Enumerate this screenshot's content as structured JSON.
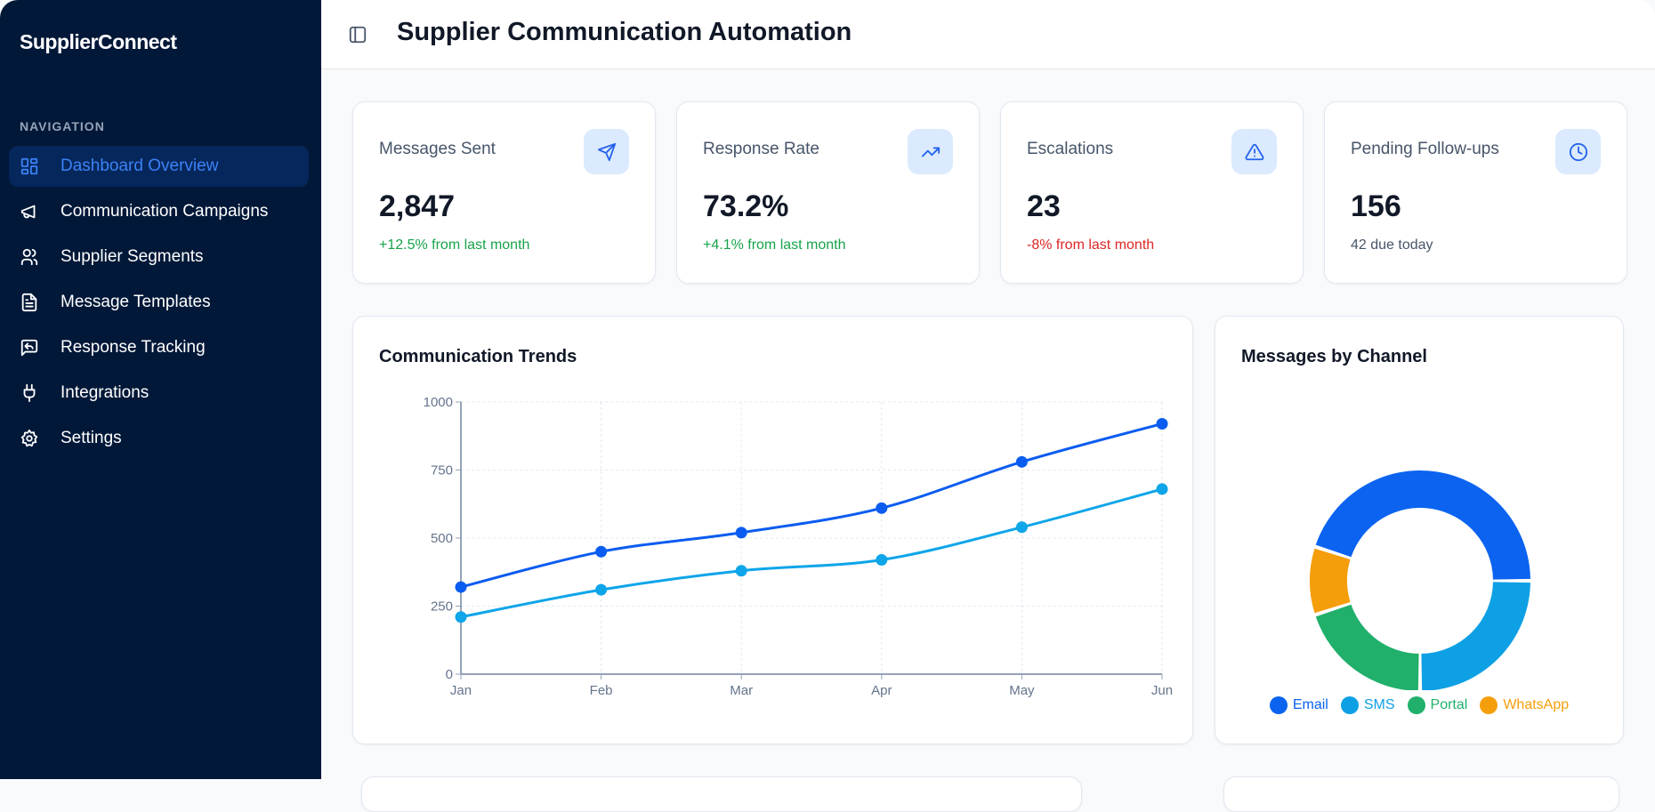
{
  "sidebar": {
    "brand": "SupplierConnect",
    "section": "NAVIGATION",
    "items": [
      {
        "label": "Dashboard Overview",
        "icon": "dashboard-icon",
        "active": true
      },
      {
        "label": "Communication Campaigns",
        "icon": "megaphone-icon"
      },
      {
        "label": "Supplier Segments",
        "icon": "users-icon"
      },
      {
        "label": "Message Templates",
        "icon": "file-text-icon"
      },
      {
        "label": "Response Tracking",
        "icon": "message-reply-icon"
      },
      {
        "label": "Integrations",
        "icon": "plug-icon"
      },
      {
        "label": "Settings",
        "icon": "gear-icon"
      }
    ]
  },
  "header": {
    "title": "Supplier Communication Automation",
    "toggle_icon": "sidebar-toggle-icon"
  },
  "stats": [
    {
      "label": "Messages Sent",
      "value": "2,847",
      "sub": "+12.5% from last month",
      "sub_color": "#16a34a",
      "icon": "send-icon"
    },
    {
      "label": "Response Rate",
      "value": "73.2%",
      "sub": "+4.1% from last month",
      "sub_color": "#16a34a",
      "icon": "trending-up-icon"
    },
    {
      "label": "Escalations",
      "value": "23",
      "sub": "-8% from last month",
      "sub_color": "#dc2626",
      "icon": "alert-triangle-icon"
    },
    {
      "label": "Pending Follow-ups",
      "value": "156",
      "sub": "42 due today",
      "sub_color": "#475569",
      "icon": "clock-icon"
    }
  ],
  "chart_data": [
    {
      "type": "line",
      "title": "Communication Trends",
      "categories": [
        "Jan",
        "Feb",
        "Mar",
        "Apr",
        "May",
        "Jun"
      ],
      "ylim": [
        0,
        1000
      ],
      "yticks": [
        "0",
        "250",
        "500",
        "750",
        "1000"
      ],
      "grid": true,
      "series": [
        {
          "values": [
            320,
            450,
            520,
            610,
            780,
            920
          ],
          "color": "#0b5cf0"
        },
        {
          "values": [
            210,
            310,
            380,
            420,
            540,
            680
          ],
          "color": "#0ea5e9"
        }
      ]
    },
    {
      "type": "pie",
      "title": "Messages by Channel",
      "legend_position": "bottom",
      "labels": [
        "Email",
        "SMS",
        "Portal",
        "WhatsApp"
      ],
      "values": [
        45,
        25,
        20,
        10
      ],
      "colors": [
        "#0b63f0",
        "#0ea0e4",
        "#20b06c",
        "#f59e0b"
      ]
    }
  ]
}
